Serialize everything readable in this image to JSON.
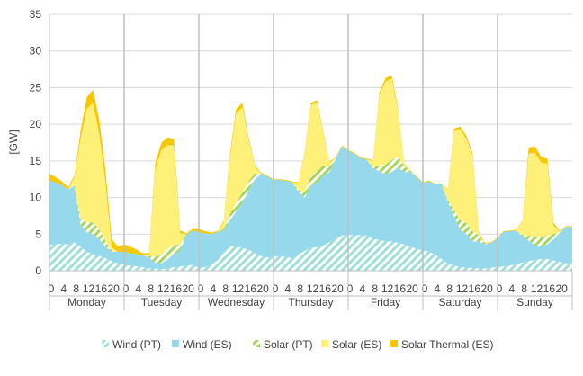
{
  "chart_data": {
    "type": "area",
    "ylabel": "[GW]",
    "ylim": [
      0,
      35
    ],
    "yticks": [
      0,
      5,
      10,
      15,
      20,
      25,
      30,
      35
    ],
    "grid": true,
    "legend_position": "bottom",
    "days": [
      "Monday",
      "Tuesday",
      "Wednesday",
      "Thursday",
      "Friday",
      "Saturday",
      "Sunday"
    ],
    "hour_ticks": [
      "0",
      "4",
      "8",
      "12",
      "16",
      "20"
    ],
    "x_hours": [
      0,
      2,
      4,
      6,
      8,
      10,
      12,
      14,
      16,
      18,
      20,
      22
    ],
    "series": [
      {
        "name": "Wind (PT)",
        "color": "#9fdfda",
        "pattern": "hatch",
        "values": [
          [
            3.5,
            3.6,
            3.7,
            3.6,
            3.9,
            3.3,
            2.6,
            2.3,
            2.0,
            1.7,
            1.3,
            1.0
          ],
          [
            0.8,
            0.7,
            0.6,
            0.5,
            0.3,
            0.3,
            0.2,
            0.3,
            0.5,
            0.6,
            0.7,
            0.8
          ],
          [
            0.4,
            0.5,
            0.8,
            1.4,
            2.4,
            3.4,
            3.3,
            3.1,
            2.9,
            2.4,
            2.0,
            1.8
          ],
          [
            1.9,
            2.0,
            1.9,
            1.7,
            2.2,
            2.7,
            3.2,
            3.2,
            3.4,
            3.9,
            4.4,
            4.8
          ],
          [
            4.9,
            4.8,
            4.9,
            4.7,
            4.4,
            4.2,
            4.0,
            4.0,
            3.8,
            3.6,
            3.3,
            3.0
          ],
          [
            2.8,
            2.6,
            2.2,
            1.6,
            1.0,
            0.7,
            0.5,
            0.4,
            0.4,
            0.3,
            0.3,
            0.4
          ],
          [
            0.5,
            0.6,
            0.7,
            0.9,
            1.1,
            1.3,
            1.5,
            1.6,
            1.6,
            1.4,
            1.2,
            1.0
          ]
        ]
      },
      {
        "name": "Wind (ES)",
        "color": "#96d9ec",
        "values": [
          [
            8.8,
            8.5,
            8.0,
            7.5,
            7.7,
            3.0,
            2.7,
            2.7,
            2.3,
            1.6,
            1.3,
            1.6
          ],
          [
            1.8,
            1.7,
            1.7,
            1.6,
            1.5,
            0.8,
            0.8,
            1.3,
            1.7,
            2.2,
            4.2,
            4.7
          ],
          [
            4.9,
            4.6,
            4.2,
            3.9,
            3.1,
            3.5,
            4.8,
            6.2,
            8.0,
            10.1,
            11.2,
            11.1
          ],
          [
            10.5,
            10.4,
            10.4,
            10.4,
            8.6,
            7.3,
            8.4,
            8.9,
            9.6,
            9.6,
            10.9,
            12.2
          ],
          [
            11.5,
            11.2,
            10.5,
            10.5,
            9.6,
            9.4,
            9.2,
            9.5,
            10.3,
            9.9,
            10.2,
            9.8
          ],
          [
            9.2,
            9.6,
            9.6,
            10.2,
            8.5,
            6.8,
            5.1,
            4.6,
            3.6,
            3.7,
            3.3,
            3.4
          ],
          [
            3.9,
            4.7,
            4.7,
            4.6,
            3.6,
            2.8,
            2.0,
            1.7,
            2.0,
            2.9,
            4.0,
            5.0
          ]
        ]
      },
      {
        "name": "Solar (PT)",
        "color": "#a4d65e",
        "pattern": "hatch",
        "values": [
          [
            0,
            0,
            0,
            0,
            0.2,
            0.8,
            1.3,
            1.6,
            1.4,
            0.8,
            0.1,
            0
          ],
          [
            0,
            0,
            0,
            0,
            0.2,
            0.8,
            1.2,
            1.4,
            1.3,
            0.8,
            0.1,
            0
          ],
          [
            0,
            0,
            0,
            0,
            0.2,
            0.8,
            1.2,
            1.4,
            1.3,
            0.8,
            0.1,
            0
          ],
          [
            0,
            0,
            0,
            0,
            0.2,
            0.8,
            1.3,
            1.5,
            1.4,
            0.8,
            0.1,
            0
          ],
          [
            0,
            0,
            0,
            0,
            0.2,
            0.8,
            1.3,
            1.6,
            1.5,
            0.8,
            0.1,
            0
          ],
          [
            0,
            0,
            0,
            0,
            0.2,
            0.8,
            1.3,
            1.5,
            1.4,
            0.8,
            0.1,
            0
          ],
          [
            0,
            0,
            0,
            0,
            0.2,
            0.7,
            1.1,
            1.3,
            1.2,
            0.7,
            0.1,
            0
          ]
        ]
      },
      {
        "name": "Solar (ES)",
        "color": "#fff07a",
        "values": [
          [
            0,
            0,
            0,
            0,
            1.0,
            11.0,
            15.5,
            16.3,
            13.0,
            8.0,
            0.5,
            0
          ],
          [
            0,
            0,
            0,
            0,
            0.2,
            12.0,
            14.3,
            14.2,
            13.6,
            1.5,
            0,
            0
          ],
          [
            0,
            0,
            0,
            0,
            0.9,
            7.8,
            12.2,
            11.6,
            5.7,
            0.9,
            0,
            0
          ],
          [
            0,
            0,
            0,
            0,
            1.0,
            5.2,
            9.7,
            9.4,
            4.4,
            0.5,
            0,
            0
          ],
          [
            0,
            0,
            0,
            0,
            0.8,
            9.6,
            11.3,
            11.1,
            6.4,
            0.3,
            0,
            0
          ],
          [
            0,
            0,
            0,
            0,
            1.3,
            10.8,
            12.4,
            11.5,
            10.2,
            0.2,
            0,
            0
          ],
          [
            0,
            0,
            0,
            0,
            1.8,
            11.2,
            11.5,
            10.2,
            9.8,
            1.2,
            0,
            0
          ]
        ]
      },
      {
        "name": "Solar Thermal (ES)",
        "color": "#f5c800",
        "values": [
          [
            0.9,
            0.7,
            0.5,
            0.3,
            0.2,
            1.0,
            1.6,
            1.8,
            1.9,
            1.6,
            1.1,
            0.7
          ],
          [
            1.0,
            0.9,
            0.6,
            0.3,
            0.2,
            0.8,
            1.0,
            1.0,
            0.9,
            0.4,
            0.1,
            0.2
          ],
          [
            0.4,
            0.3,
            0.2,
            0.1,
            0.2,
            0.5,
            0.6,
            0.6,
            0.3,
            0.2,
            0.1,
            0.1
          ],
          [
            0.1,
            0.1,
            0.1,
            0.1,
            0.1,
            0.2,
            0.3,
            0.3,
            0.2,
            0.1,
            0.1,
            0.1
          ],
          [
            0.1,
            0.1,
            0.1,
            0.1,
            0.1,
            0.3,
            0.5,
            0.5,
            0.3,
            0.1,
            0.1,
            0.1
          ],
          [
            0.1,
            0.1,
            0.1,
            0.1,
            0.1,
            0.3,
            0.4,
            0.4,
            0.4,
            0.2,
            0.1,
            0.1
          ],
          [
            0.1,
            0.1,
            0.1,
            0.1,
            0.1,
            0.8,
            0.9,
            0.8,
            0.7,
            0.4,
            0.1,
            0.1
          ]
        ]
      }
    ]
  }
}
